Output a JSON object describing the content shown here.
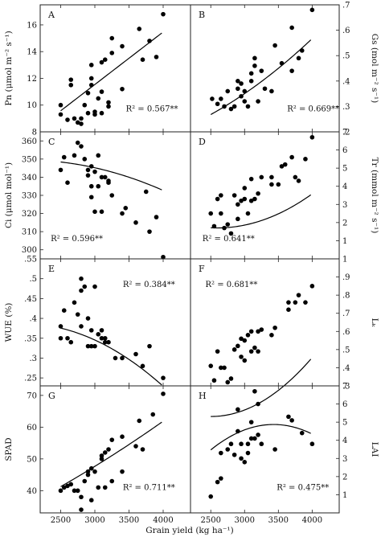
{
  "figure": {
    "xlabel": "Grain yield (kg ha⁻¹)",
    "xticks": [
      2500,
      3000,
      3500,
      4000
    ],
    "xlim": [
      2200,
      4400
    ]
  },
  "chart_data": [
    {
      "id": "A",
      "type": "scatter",
      "row": 0,
      "side": "left",
      "ylabel": "Pn (μmol m⁻² s⁻¹)",
      "ylim": [
        8,
        17.5
      ],
      "yticks": [
        8,
        10,
        12,
        14,
        16
      ],
      "r2_label": "R² = 0.567**",
      "fit": {
        "x0": 2500,
        "x1": 3980,
        "coef": [
          -0.25,
          0.00393,
          0
        ]
      },
      "points": [
        [
          2500,
          10.0
        ],
        [
          2500,
          9.3
        ],
        [
          2600,
          8.9
        ],
        [
          2650,
          11.9
        ],
        [
          2650,
          11.5
        ],
        [
          2700,
          9.0
        ],
        [
          2750,
          8.7
        ],
        [
          2800,
          9.0
        ],
        [
          2800,
          8.6
        ],
        [
          2850,
          10.0
        ],
        [
          2900,
          9.4
        ],
        [
          2900,
          10.9
        ],
        [
          2950,
          11.5
        ],
        [
          2950,
          12.0
        ],
        [
          2950,
          13.0
        ],
        [
          3000,
          9.3
        ],
        [
          3000,
          9.5
        ],
        [
          3050,
          10.5
        ],
        [
          3100,
          11.0
        ],
        [
          3100,
          13.2
        ],
        [
          3100,
          9.4
        ],
        [
          3150,
          13.4
        ],
        [
          3200,
          9.9
        ],
        [
          3200,
          10.2
        ],
        [
          3250,
          13.9
        ],
        [
          3250,
          15.0
        ],
        [
          3400,
          11.2
        ],
        [
          3400,
          14.4
        ],
        [
          3650,
          15.7
        ],
        [
          3700,
          13.4
        ],
        [
          3800,
          14.8
        ],
        [
          3900,
          13.6
        ],
        [
          4000,
          16.8
        ]
      ]
    },
    {
      "id": "B",
      "type": "scatter",
      "row": 0,
      "side": "right",
      "ylabel": "Gs (mol m⁻² s⁻¹)",
      "ylim": [
        0.2,
        0.7
      ],
      "yticks": [
        0.2,
        0.3,
        0.4,
        0.5,
        0.6,
        0.7
      ],
      "r2_label": "R² = 0.669**",
      "fit": {
        "x0": 2500,
        "x1": 3980,
        "coef": [
          0.115,
          -2.5e-05,
          3.45e-08
        ]
      },
      "points": [
        [
          2520,
          0.33
        ],
        [
          2600,
          0.31
        ],
        [
          2650,
          0.33
        ],
        [
          2700,
          0.3
        ],
        [
          2750,
          0.36
        ],
        [
          2800,
          0.29
        ],
        [
          2850,
          0.3
        ],
        [
          2900,
          0.37
        ],
        [
          2900,
          0.4
        ],
        [
          2950,
          0.34
        ],
        [
          2950,
          0.39
        ],
        [
          3000,
          0.32
        ],
        [
          3000,
          0.36
        ],
        [
          3050,
          0.3
        ],
        [
          3100,
          0.4
        ],
        [
          3100,
          0.43
        ],
        [
          3150,
          0.49
        ],
        [
          3150,
          0.46
        ],
        [
          3200,
          0.32
        ],
        [
          3250,
          0.44
        ],
        [
          3300,
          0.37
        ],
        [
          3400,
          0.36
        ],
        [
          3450,
          0.54
        ],
        [
          3550,
          0.47
        ],
        [
          3700,
          0.44
        ],
        [
          3700,
          0.61
        ],
        [
          3800,
          0.49
        ],
        [
          3850,
          0.52
        ],
        [
          4000,
          0.68
        ]
      ]
    },
    {
      "id": "C",
      "type": "scatter",
      "row": 1,
      "side": "left",
      "ylabel": "Ci (μmol mol⁻¹)",
      "ylim": [
        295,
        365
      ],
      "yticks": [
        300,
        310,
        320,
        330,
        340,
        350,
        360
      ],
      "r2_label": "R² = 0.596**",
      "fit": {
        "x0": 2500,
        "x1": 3980,
        "coef": [
          333.5,
          0.0162,
          -4.1e-06
        ]
      },
      "points": [
        [
          2500,
          344
        ],
        [
          2550,
          351
        ],
        [
          2600,
          337
        ],
        [
          2700,
          352
        ],
        [
          2750,
          359
        ],
        [
          2800,
          357
        ],
        [
          2850,
          350
        ],
        [
          2900,
          344
        ],
        [
          2900,
          341
        ],
        [
          2950,
          346
        ],
        [
          2950,
          335
        ],
        [
          2950,
          329
        ],
        [
          3000,
          321
        ],
        [
          3000,
          343
        ],
        [
          3050,
          352
        ],
        [
          3050,
          335
        ],
        [
          3100,
          321
        ],
        [
          3100,
          340
        ],
        [
          3150,
          340
        ],
        [
          3200,
          337
        ],
        [
          3200,
          338
        ],
        [
          3250,
          330
        ],
        [
          3400,
          320
        ],
        [
          3450,
          323
        ],
        [
          3600,
          315
        ],
        [
          3750,
          332
        ],
        [
          3800,
          310
        ],
        [
          3900,
          318
        ],
        [
          4000,
          296
        ]
      ]
    },
    {
      "id": "D",
      "type": "scatter",
      "row": 1,
      "side": "right",
      "ylabel": "Tr (mmol m⁻² s⁻¹)",
      "ylim": [
        0,
        7
      ],
      "yticks": [
        1,
        2,
        3,
        4,
        5,
        6,
        7
      ],
      "r2_label": "R² = 0.641**",
      "fit": {
        "x0": 2500,
        "x1": 3980,
        "coef": [
          8.1,
          -0.00493,
          9.5e-07
        ]
      },
      "points": [
        [
          2500,
          2.5
        ],
        [
          2550,
          1.8
        ],
        [
          2600,
          3.3
        ],
        [
          2650,
          3.5
        ],
        [
          2650,
          2.5
        ],
        [
          2700,
          1.7
        ],
        [
          2750,
          1.9
        ],
        [
          2800,
          1.4
        ],
        [
          2850,
          3.5
        ],
        [
          2900,
          2.2
        ],
        [
          2900,
          3.0
        ],
        [
          2950,
          3.2
        ],
        [
          3000,
          3.9
        ],
        [
          3000,
          3.3
        ],
        [
          3050,
          2.5
        ],
        [
          3100,
          3.2
        ],
        [
          3100,
          4.4
        ],
        [
          3150,
          3.3
        ],
        [
          3200,
          3.6
        ],
        [
          3250,
          4.5
        ],
        [
          3400,
          4.1
        ],
        [
          3400,
          4.5
        ],
        [
          3500,
          4.1
        ],
        [
          3550,
          5.1
        ],
        [
          3600,
          5.2
        ],
        [
          3700,
          5.6
        ],
        [
          3750,
          4.5
        ],
        [
          3800,
          4.3
        ],
        [
          3900,
          5.5
        ],
        [
          4000,
          6.7
        ]
      ]
    },
    {
      "id": "E",
      "type": "scatter",
      "row": 2,
      "side": "left",
      "ylabel": "WUE (%)",
      "ylim": [
        0.23,
        0.55
      ],
      "yticks": [
        0.25,
        0.3,
        0.35,
        0.4,
        0.45,
        0.5,
        0.55
      ],
      "r2_label": "R² = 0.384**",
      "fit": {
        "x0": 2500,
        "x1": 3980,
        "coef": [
          0.245,
          0.000146,
          -3.75e-08
        ]
      },
      "points": [
        [
          2500,
          0.35
        ],
        [
          2500,
          0.38
        ],
        [
          2550,
          0.42
        ],
        [
          2600,
          0.35
        ],
        [
          2650,
          0.34
        ],
        [
          2700,
          0.44
        ],
        [
          2750,
          0.41
        ],
        [
          2800,
          0.47
        ],
        [
          2800,
          0.38
        ],
        [
          2800,
          0.5
        ],
        [
          2850,
          0.48
        ],
        [
          2900,
          0.33
        ],
        [
          2900,
          0.4
        ],
        [
          2950,
          0.37
        ],
        [
          2950,
          0.33
        ],
        [
          3000,
          0.33
        ],
        [
          3000,
          0.48
        ],
        [
          3050,
          0.36
        ],
        [
          3100,
          0.35
        ],
        [
          3100,
          0.37
        ],
        [
          3150,
          0.35
        ],
        [
          3150,
          0.34
        ],
        [
          3200,
          0.34
        ],
        [
          3300,
          0.3
        ],
        [
          3400,
          0.3
        ],
        [
          3600,
          0.31
        ],
        [
          3700,
          0.28
        ],
        [
          3800,
          0.33
        ],
        [
          4000,
          0.25
        ]
      ]
    },
    {
      "id": "F",
      "type": "scatter",
      "row": 2,
      "side": "right",
      "ylabel": "Lₖ",
      "ylim": [
        0.3,
        1.0
      ],
      "yticks": [
        0.3,
        0.4,
        0.5,
        0.6,
        0.7,
        0.8,
        0.9,
        1.0
      ],
      "r2_label": "R² = 0.681**",
      "fit": {
        "x0": 2500,
        "x1": 3980,
        "coef": [
          1.04,
          -0.000726,
          1.45e-07
        ]
      },
      "points": [
        [
          2500,
          0.41
        ],
        [
          2550,
          0.33
        ],
        [
          2600,
          0.49
        ],
        [
          2650,
          0.4
        ],
        [
          2700,
          0.4
        ],
        [
          2750,
          0.32
        ],
        [
          2800,
          0.34
        ],
        [
          2850,
          0.5
        ],
        [
          2900,
          0.52
        ],
        [
          2950,
          0.56
        ],
        [
          2950,
          0.46
        ],
        [
          3000,
          0.44
        ],
        [
          3000,
          0.55
        ],
        [
          3050,
          0.58
        ],
        [
          3100,
          0.49
        ],
        [
          3100,
          0.6
        ],
        [
          3150,
          0.51
        ],
        [
          3200,
          0.49
        ],
        [
          3200,
          0.6
        ],
        [
          3250,
          0.61
        ],
        [
          3400,
          0.58
        ],
        [
          3450,
          0.62
        ],
        [
          3650,
          0.72
        ],
        [
          3650,
          0.76
        ],
        [
          3750,
          0.76
        ],
        [
          3800,
          0.8
        ],
        [
          3900,
          0.76
        ],
        [
          4000,
          0.85
        ]
      ]
    },
    {
      "id": "G",
      "type": "scatter",
      "row": 3,
      "side": "left",
      "ylabel": "SPAD",
      "ylim": [
        33,
        73
      ],
      "yticks": [
        40,
        50,
        60,
        70
      ],
      "r2_label": "R² = 0.711**",
      "fit": {
        "x0": 2500,
        "x1": 3980,
        "coef": [
          16.4,
          0.00757,
          9.5e-07
        ]
      },
      "points": [
        [
          2500,
          40.0
        ],
        [
          2550,
          41.0
        ],
        [
          2600,
          41.5
        ],
        [
          2650,
          42.0
        ],
        [
          2700,
          40.0
        ],
        [
          2750,
          40.0
        ],
        [
          2800,
          38.0
        ],
        [
          2800,
          34.0
        ],
        [
          2850,
          43.0
        ],
        [
          2900,
          46.0
        ],
        [
          2900,
          45.0
        ],
        [
          2950,
          47.0
        ],
        [
          2950,
          37.0
        ],
        [
          3000,
          46.0
        ],
        [
          3050,
          41.0
        ],
        [
          3100,
          50.0
        ],
        [
          3100,
          51.0
        ],
        [
          3150,
          52.0
        ],
        [
          3150,
          41.0
        ],
        [
          3200,
          53.0
        ],
        [
          3250,
          56.0
        ],
        [
          3250,
          43.0
        ],
        [
          3400,
          46.0
        ],
        [
          3400,
          57.0
        ],
        [
          3600,
          54.0
        ],
        [
          3650,
          62.0
        ],
        [
          3700,
          53.0
        ],
        [
          3850,
          64.0
        ],
        [
          4000,
          70.5
        ]
      ]
    },
    {
      "id": "H",
      "type": "scatter",
      "row": 3,
      "side": "right",
      "ylabel": "LAI",
      "ylim": [
        0,
        7
      ],
      "yticks": [
        1,
        2,
        3,
        4,
        5,
        6,
        7
      ],
      "r2_label": "R² = 0.475**",
      "fit": {
        "x0": 2500,
        "x1": 3980,
        "coef": [
          -14.18,
          0.011111,
          -1.62e-06
        ]
      },
      "points": [
        [
          2500,
          0.9
        ],
        [
          2600,
          1.7
        ],
        [
          2650,
          1.9
        ],
        [
          2650,
          3.3
        ],
        [
          2750,
          3.5
        ],
        [
          2800,
          3.8
        ],
        [
          2850,
          3.2
        ],
        [
          2900,
          5.7
        ],
        [
          2900,
          4.5
        ],
        [
          2950,
          3.0
        ],
        [
          2950,
          3.8
        ],
        [
          3000,
          2.8
        ],
        [
          3050,
          3.8
        ],
        [
          3050,
          3.3
        ],
        [
          3100,
          5.0
        ],
        [
          3100,
          4.1
        ],
        [
          3150,
          4.1
        ],
        [
          3150,
          6.7
        ],
        [
          3200,
          6.0
        ],
        [
          3200,
          4.3
        ],
        [
          3250,
          3.8
        ],
        [
          3450,
          3.5
        ],
        [
          3650,
          5.3
        ],
        [
          3700,
          5.1
        ],
        [
          3850,
          4.4
        ],
        [
          4000,
          3.8
        ]
      ]
    }
  ]
}
